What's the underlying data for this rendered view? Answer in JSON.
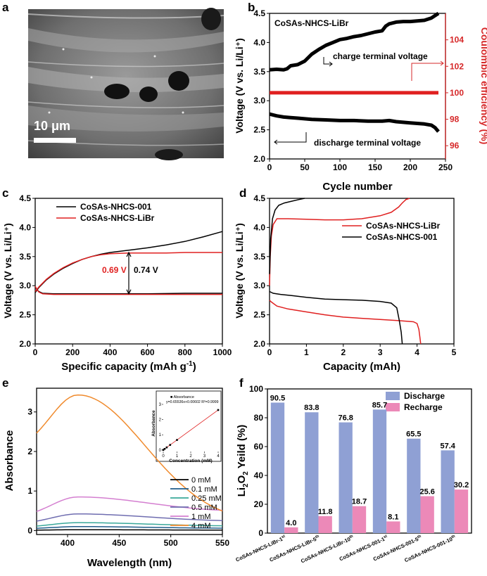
{
  "panel_labels": [
    "a",
    "b",
    "c",
    "d",
    "e",
    "f"
  ],
  "colors": {
    "black": "#000000",
    "red": "#e02020",
    "red_axis": "#d62728",
    "orange": "#f08a2c",
    "purple_blue": "#8fa0d4",
    "pink": "#ec89b8"
  },
  "chart_data": [
    {
      "panel": "a",
      "type": "image",
      "description_text": "SEM micrograph",
      "scale_bar": "10 μm"
    },
    {
      "panel": "b",
      "type": "line",
      "title": "CoSAs-NHCS-LiBr",
      "xlabel": "Cycle number",
      "ylabel": "Voltage (V vs. Li/Li⁺)",
      "y2label": "Coulombic efficiency (%)",
      "xlim": [
        0,
        250
      ],
      "ylim": [
        2.0,
        4.5
      ],
      "y2lim": [
        95,
        106
      ],
      "xticks": [
        "0",
        "50",
        "100",
        "150",
        "200",
        "250"
      ],
      "yticks": [
        "2.0",
        "2.5",
        "3.0",
        "3.5",
        "4.0",
        "4.5"
      ],
      "y2ticks": [
        "96",
        "98",
        "100",
        "102",
        "104"
      ],
      "annotations": [
        "charge terminal voltage",
        "discharge terminal voltage"
      ],
      "series": [
        {
          "name": "charge terminal voltage",
          "color": "#000000",
          "x": [
            0,
            10,
            20,
            25,
            30,
            40,
            50,
            60,
            70,
            80,
            90,
            100,
            110,
            120,
            130,
            140,
            150,
            160,
            165,
            170,
            180,
            190,
            200,
            210,
            220,
            230,
            240
          ],
          "y": [
            3.53,
            3.54,
            3.53,
            3.55,
            3.6,
            3.62,
            3.68,
            3.8,
            3.88,
            3.95,
            4.0,
            4.05,
            4.07,
            4.1,
            4.12,
            4.15,
            4.18,
            4.2,
            4.28,
            4.32,
            4.35,
            4.36,
            4.36,
            4.37,
            4.38,
            4.42,
            4.5
          ]
        },
        {
          "name": "discharge terminal voltage",
          "color": "#000000",
          "x": [
            0,
            10,
            20,
            30,
            40,
            50,
            60,
            80,
            100,
            120,
            140,
            160,
            170,
            180,
            200,
            220,
            230,
            235,
            240
          ],
          "y": [
            2.77,
            2.74,
            2.72,
            2.71,
            2.7,
            2.69,
            2.68,
            2.67,
            2.66,
            2.66,
            2.65,
            2.65,
            2.66,
            2.64,
            2.62,
            2.6,
            2.58,
            2.54,
            2.47
          ]
        },
        {
          "name": "Coulombic efficiency",
          "axis": "right",
          "color": "#e02020",
          "x": [
            0,
            240
          ],
          "y": [
            100,
            100
          ]
        }
      ]
    },
    {
      "panel": "c",
      "type": "line",
      "xlabel": "Specific capacity (mAh g⁻¹)",
      "ylabel": "Voltage (V vs. Li/Li⁺)",
      "xlim": [
        0,
        1000
      ],
      "ylim": [
        2.0,
        4.5
      ],
      "xticks": [
        "0",
        "200",
        "400",
        "600",
        "800",
        "1000"
      ],
      "yticks": [
        "2.0",
        "2.5",
        "3.0",
        "3.5",
        "4.0",
        "4.5"
      ],
      "annotations": [
        "0.69 V",
        "0.74 V"
      ],
      "series": [
        {
          "name": "CoSAs-NHCS-001",
          "color": "#000000",
          "charge": {
            "x": [
              0,
              20,
              60,
              100,
              150,
              200,
              250,
              300,
              350,
              400,
              500,
              600,
              700,
              800,
              900,
              1000
            ],
            "y": [
              2.88,
              2.97,
              3.1,
              3.2,
              3.3,
              3.38,
              3.45,
              3.5,
              3.54,
              3.57,
              3.61,
              3.65,
              3.7,
              3.76,
              3.84,
              3.93
            ]
          },
          "discharge": {
            "x": [
              0,
              10,
              20,
              40,
              100,
              200,
              400,
              600,
              800,
              1000
            ],
            "y": [
              2.98,
              2.93,
              2.9,
              2.87,
              2.86,
              2.86,
              2.86,
              2.86,
              2.87,
              2.87
            ]
          }
        },
        {
          "name": "CoSAs-NHCS-LiBr",
          "color": "#e02020",
          "charge": {
            "x": [
              0,
              20,
              60,
              100,
              150,
              200,
              250,
              300,
              350,
              400,
              500,
              600,
              700,
              800,
              900,
              1000
            ],
            "y": [
              2.9,
              2.98,
              3.11,
              3.21,
              3.31,
              3.39,
              3.45,
              3.5,
              3.53,
              3.55,
              3.56,
              3.56,
              3.56,
              3.57,
              3.57,
              3.57
            ]
          },
          "discharge": {
            "x": [
              0,
              10,
              20,
              40,
              100,
              200,
              400,
              600,
              800,
              1000
            ],
            "y": [
              2.99,
              2.93,
              2.89,
              2.86,
              2.85,
              2.85,
              2.85,
              2.85,
              2.85,
              2.85
            ]
          }
        }
      ]
    },
    {
      "panel": "d",
      "type": "line",
      "xlabel": "Capacity (mAh)",
      "ylabel": "Voltage (V vs. Li/Li⁺)",
      "xlim": [
        0,
        5
      ],
      "ylim": [
        2.0,
        4.5
      ],
      "xticks": [
        "0",
        "1",
        "2",
        "3",
        "4",
        "5"
      ],
      "yticks": [
        "2.0",
        "2.5",
        "3.0",
        "3.5",
        "4.0",
        "4.5"
      ],
      "series": [
        {
          "name": "CoSAs-NHCS-LiBr",
          "color": "#e02020",
          "charge": {
            "x": [
              0,
              0.02,
              0.05,
              0.1,
              0.2,
              0.5,
              1,
              1.5,
              2,
              2.5,
              3,
              3.3,
              3.5,
              3.6,
              3.7,
              3.8
            ],
            "y": [
              3.0,
              3.5,
              3.85,
              4.05,
              4.15,
              4.15,
              4.14,
              4.13,
              4.13,
              4.15,
              4.2,
              4.26,
              4.35,
              4.42,
              4.48,
              4.5
            ]
          },
          "discharge": {
            "x": [
              0,
              0.05,
              0.2,
              0.5,
              1,
              1.5,
              2,
              2.5,
              3,
              3.5,
              3.9,
              4.0,
              4.05,
              4.08,
              4.1
            ],
            "y": [
              2.75,
              2.72,
              2.65,
              2.6,
              2.55,
              2.5,
              2.46,
              2.44,
              2.42,
              2.4,
              2.38,
              2.35,
              2.25,
              2.1,
              2.0
            ]
          }
        },
        {
          "name": "CoSAs-NHCS-001",
          "color": "#000000",
          "charge": {
            "x": [
              0,
              0.03,
              0.08,
              0.15,
              0.25,
              0.4,
              0.6,
              0.8,
              0.95
            ],
            "y": [
              3.2,
              3.8,
              4.15,
              4.3,
              4.38,
              4.42,
              4.45,
              4.48,
              4.5
            ]
          },
          "discharge": {
            "x": [
              0,
              0.1,
              0.3,
              0.6,
              1,
              1.5,
              2,
              2.5,
              3,
              3.3,
              3.45,
              3.52,
              3.57,
              3.6
            ],
            "y": [
              2.9,
              2.87,
              2.85,
              2.83,
              2.8,
              2.77,
              2.76,
              2.75,
              2.73,
              2.7,
              2.62,
              2.4,
              2.2,
              2.0
            ]
          }
        }
      ]
    },
    {
      "panel": "e",
      "type": "line",
      "xlabel": "Wavelength (nm)",
      "ylabel": "Absorbance",
      "xlim": [
        370,
        550
      ],
      "ylim": [
        -0.1,
        3.6
      ],
      "xticks": [
        "400",
        "450",
        "500",
        "550"
      ],
      "yticks": [
        "0",
        "1",
        "2",
        "3"
      ],
      "series": [
        {
          "name": "0 mM",
          "color": "#000000",
          "peak": 0.02
        },
        {
          "name": "0.1 mM",
          "color": "#1f5c8a",
          "peak": 0.1
        },
        {
          "name": "0.25 mM",
          "color": "#3aa89a",
          "peak": 0.2
        },
        {
          "name": "0.5 mM",
          "color": "#6f6db0",
          "peak": 0.42
        },
        {
          "name": "1 mM",
          "color": "#d47fd0",
          "peak": 0.85
        },
        {
          "name": "4 mM",
          "color": "#f08a2c",
          "peak": 3.43
        }
      ],
      "inset": {
        "ylabel": "Absorbance",
        "xlabel": "Concentration (mM)",
        "legend": "Absorbance",
        "fit": "y=0.65536x+0.00602 R²=0.9999",
        "x": [
          0,
          0.1,
          0.25,
          0.5,
          1,
          4
        ],
        "y": [
          0.006,
          0.072,
          0.17,
          0.334,
          0.66,
          2.63
        ],
        "xticks": [
          "0",
          "1",
          "2",
          "3",
          "4"
        ],
        "yticks": [
          "0",
          "1",
          "2",
          "3"
        ]
      }
    },
    {
      "panel": "f",
      "type": "bar",
      "ylabel": "Li₂O₂ Yeild (%)",
      "ylim": [
        0,
        100
      ],
      "yticks": [
        "0",
        "20",
        "40",
        "60",
        "80",
        "100"
      ],
      "categories": [
        "CoSAs-NHCS-LiBr-1st",
        "CoSAs-NHCS-LiBr-5th",
        "CoSAs-NHCS-LiBr-10th",
        "CoSAs-NHCS-001-1st",
        "CoSAs-NHCS-001-5th",
        "CoSAs-NHCS-001-10th"
      ],
      "category_base": [
        "CoSAs-NHCS-LiBr-1",
        "CoSAs-NHCS-LiBr-5",
        "CoSAs-NHCS-LiBr-10",
        "CoSAs-NHCS-001-1",
        "CoSAs-NHCS-001-5",
        "CoSAs-NHCS-001-10"
      ],
      "category_sup": [
        "st",
        "th",
        "th",
        "st",
        "th",
        "th"
      ],
      "series": [
        {
          "name": "Discharge",
          "color": "#8fa0d4",
          "values": [
            90.5,
            83.8,
            76.8,
            85.7,
            65.5,
            57.4
          ],
          "labels": [
            "90.5",
            "83.8",
            "76.8",
            "85.7",
            "65.5",
            "57.4"
          ]
        },
        {
          "name": "Recharge",
          "color": "#ec89b8",
          "values": [
            4.0,
            11.8,
            18.7,
            8.1,
            25.6,
            30.2
          ],
          "labels": [
            "4.0",
            "11.8",
            "18.7",
            "8.1",
            "25.6",
            "30.2"
          ]
        }
      ]
    }
  ]
}
